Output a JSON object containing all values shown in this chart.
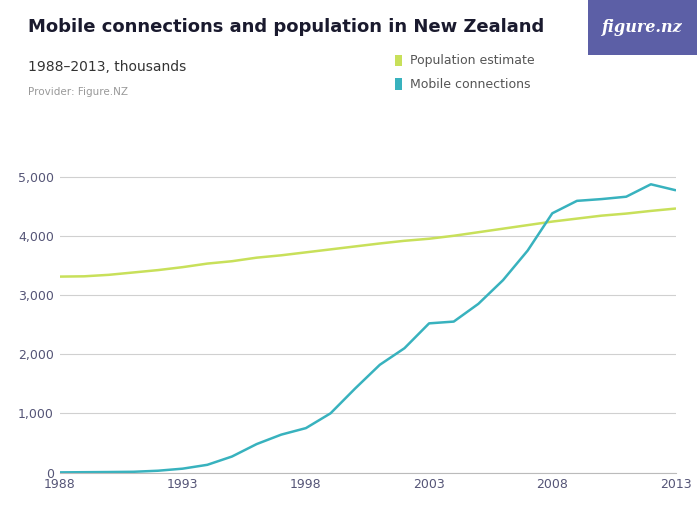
{
  "title": "Mobile connections and population in New Zealand",
  "subtitle": "1988–2013, thousands",
  "provider": "Provider: Figure.NZ",
  "background_color": "#ffffff",
  "plot_bg_color": "#ffffff",
  "title_color": "#1a1a2e",
  "subtitle_color": "#333333",
  "provider_color": "#999999",
  "logo_bg_color": "#5c5fa6",
  "logo_text": "figure.nz",
  "grid_color": "#d0d0d0",
  "population_color": "#c8e05a",
  "mobile_color": "#38b2be",
  "population_label": "Population estimate",
  "mobile_label": "Mobile connections",
  "years": [
    1988,
    1989,
    1990,
    1991,
    1992,
    1993,
    1994,
    1995,
    1996,
    1997,
    1998,
    1999,
    2000,
    2001,
    2002,
    2003,
    2004,
    2005,
    2006,
    2007,
    2008,
    2009,
    2010,
    2011,
    2012,
    2013
  ],
  "population": [
    3310,
    3315,
    3340,
    3380,
    3420,
    3470,
    3530,
    3570,
    3630,
    3670,
    3720,
    3770,
    3820,
    3870,
    3915,
    3950,
    4000,
    4060,
    4120,
    4180,
    4240,
    4290,
    4340,
    4375,
    4420,
    4460
  ],
  "mobile": [
    2,
    5,
    8,
    12,
    30,
    65,
    130,
    270,
    480,
    640,
    750,
    1000,
    1420,
    1820,
    2100,
    2520,
    2550,
    2850,
    3250,
    3750,
    4380,
    4590,
    4620,
    4660,
    4870,
    4770
  ],
  "ylim": [
    0,
    5500
  ],
  "yticks": [
    0,
    1000,
    2000,
    3000,
    4000,
    5000
  ],
  "xlim": [
    1988,
    2013
  ],
  "xticks": [
    1988,
    1993,
    1998,
    2003,
    2008,
    2013
  ],
  "title_fontsize": 13,
  "subtitle_fontsize": 10,
  "provider_fontsize": 7.5,
  "tick_fontsize": 9,
  "legend_fontsize": 9
}
